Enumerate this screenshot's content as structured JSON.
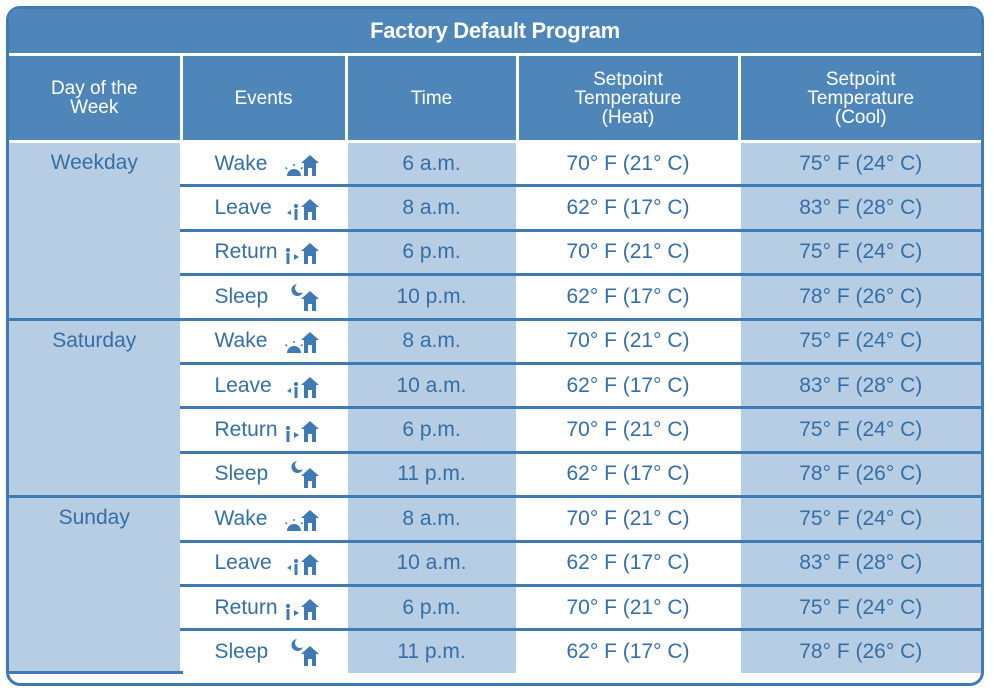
{
  "title": "Factory Default Program",
  "headers": {
    "day": [
      "Day of the",
      "Week"
    ],
    "events": [
      "Events"
    ],
    "time": [
      "Time"
    ],
    "heat": [
      "Setpoint",
      "Temperature",
      "(Heat)"
    ],
    "cool": [
      "Setpoint",
      "Temperature",
      "(Cool)"
    ]
  },
  "groups": [
    {
      "day": "Weekday",
      "rows": [
        {
          "event": "Wake",
          "icon": "wake-icon",
          "time": "6 a.m.",
          "heat": "70° F (21° C)",
          "cool": "75° F (24° C)"
        },
        {
          "event": "Leave",
          "icon": "leave-icon",
          "time": "8 a.m.",
          "heat": "62° F (17° C)",
          "cool": "83° F (28° C)"
        },
        {
          "event": "Return",
          "icon": "return-icon",
          "time": "6 p.m.",
          "heat": "70° F (21° C)",
          "cool": "75° F (24° C)"
        },
        {
          "event": "Sleep",
          "icon": "sleep-icon",
          "time": "10 p.m.",
          "heat": "62° F (17° C)",
          "cool": "78° F (26° C)"
        }
      ]
    },
    {
      "day": "Saturday",
      "rows": [
        {
          "event": "Wake",
          "icon": "wake-icon",
          "time": "8 a.m.",
          "heat": "70° F (21° C)",
          "cool": "75° F (24° C)"
        },
        {
          "event": "Leave",
          "icon": "leave-icon",
          "time": "10 a.m.",
          "heat": "62° F (17° C)",
          "cool": "83° F (28° C)"
        },
        {
          "event": "Return",
          "icon": "return-icon",
          "time": "6 p.m.",
          "heat": "70° F (21° C)",
          "cool": "75° F (24° C)"
        },
        {
          "event": "Sleep",
          "icon": "sleep-icon",
          "time": "11 p.m.",
          "heat": "62° F (17° C)",
          "cool": "78° F (26° C)"
        }
      ]
    },
    {
      "day": "Sunday",
      "rows": [
        {
          "event": "Wake",
          "icon": "wake-icon",
          "time": "8 a.m.",
          "heat": "70° F (21° C)",
          "cool": "75° F (24° C)"
        },
        {
          "event": "Leave",
          "icon": "leave-icon",
          "time": "10 a.m.",
          "heat": "62° F (17° C)",
          "cool": "83° F (28° C)"
        },
        {
          "event": "Return",
          "icon": "return-icon",
          "time": "6 p.m.",
          "heat": "70° F (21° C)",
          "cool": "75° F (24° C)"
        },
        {
          "event": "Sleep",
          "icon": "sleep-icon",
          "time": "11 p.m.",
          "heat": "62° F (17° C)",
          "cool": "78° F (26° C)"
        }
      ]
    }
  ],
  "colors": {
    "header": "#4f86b9",
    "shade": "#b6cde3",
    "text": "#356ea5",
    "icon": "#3f7ab2"
  }
}
